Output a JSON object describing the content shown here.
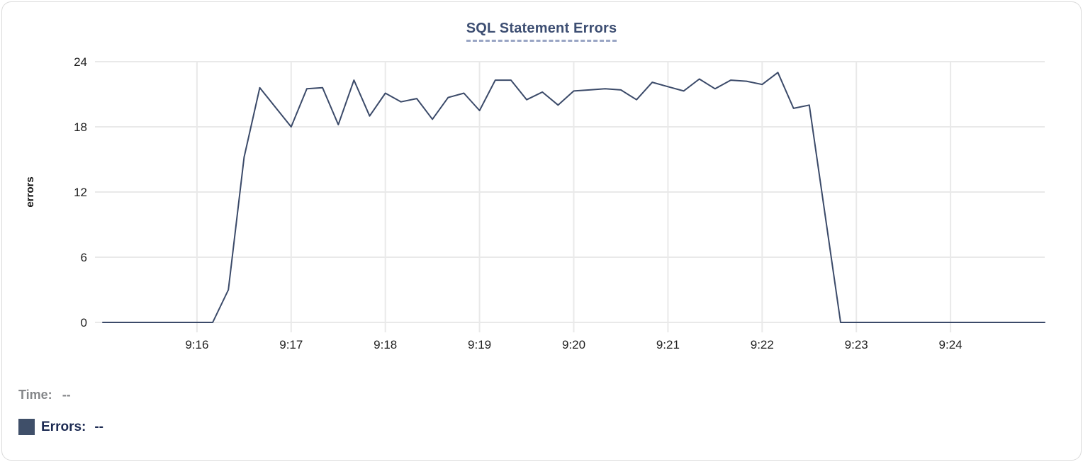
{
  "chart_data": {
    "type": "line",
    "title": "SQL Statement Errors",
    "xlabel": "",
    "ylabel": "errors",
    "ylim": [
      0,
      24
    ],
    "y_ticks": [
      0,
      6,
      12,
      18,
      24
    ],
    "x_ticks": [
      "9:16",
      "9:17",
      "9:18",
      "9:19",
      "9:20",
      "9:21",
      "9:22",
      "9:23",
      "9:24"
    ],
    "xlim": [
      "9:15:00",
      "9:25:00"
    ],
    "x_interval_seconds": 10,
    "grid": true,
    "legend_position": "bottom-left",
    "series": [
      {
        "name": "Errors",
        "color": "#3b4a69",
        "points": [
          [
            "9:15:00",
            0
          ],
          [
            "9:15:10",
            0
          ],
          [
            "9:15:20",
            0
          ],
          [
            "9:15:30",
            0
          ],
          [
            "9:15:40",
            0
          ],
          [
            "9:15:50",
            0
          ],
          [
            "9:16:00",
            0
          ],
          [
            "9:16:10",
            0
          ],
          [
            "9:16:20",
            3
          ],
          [
            "9:16:30",
            15.2
          ],
          [
            "9:16:40",
            21.6
          ],
          [
            "9:16:50",
            19.8
          ],
          [
            "9:17:00",
            18
          ],
          [
            "9:17:10",
            21.5
          ],
          [
            "9:17:20",
            21.6
          ],
          [
            "9:17:30",
            18.2
          ],
          [
            "9:17:40",
            22.3
          ],
          [
            "9:17:50",
            19
          ],
          [
            "9:18:00",
            21.1
          ],
          [
            "9:18:10",
            20.3
          ],
          [
            "9:18:20",
            20.6
          ],
          [
            "9:18:30",
            18.7
          ],
          [
            "9:18:40",
            20.7
          ],
          [
            "9:18:50",
            21.1
          ],
          [
            "9:19:00",
            19.5
          ],
          [
            "9:19:10",
            22.3
          ],
          [
            "9:19:20",
            22.3
          ],
          [
            "9:19:30",
            20.5
          ],
          [
            "9:19:40",
            21.2
          ],
          [
            "9:19:50",
            20
          ],
          [
            "9:20:00",
            21.3
          ],
          [
            "9:20:10",
            21.4
          ],
          [
            "9:20:20",
            21.5
          ],
          [
            "9:20:30",
            21.4
          ],
          [
            "9:20:40",
            20.5
          ],
          [
            "9:20:50",
            22.1
          ],
          [
            "9:21:00",
            21.7
          ],
          [
            "9:21:10",
            21.3
          ],
          [
            "9:21:20",
            22.4
          ],
          [
            "9:21:30",
            21.5
          ],
          [
            "9:21:40",
            22.3
          ],
          [
            "9:21:50",
            22.2
          ],
          [
            "9:22:00",
            21.9
          ],
          [
            "9:22:10",
            23
          ],
          [
            "9:22:20",
            19.7
          ],
          [
            "9:22:30",
            20
          ],
          [
            "9:22:40",
            10
          ],
          [
            "9:22:50",
            0
          ],
          [
            "9:23:00",
            0
          ],
          [
            "9:23:10",
            0
          ],
          [
            "9:23:20",
            0
          ],
          [
            "9:23:30",
            0
          ],
          [
            "9:23:40",
            0
          ],
          [
            "9:23:50",
            0
          ],
          [
            "9:24:00",
            0
          ],
          [
            "9:24:10",
            0
          ],
          [
            "9:24:20",
            0
          ],
          [
            "9:24:30",
            0
          ],
          [
            "9:24:40",
            0
          ],
          [
            "9:24:50",
            0
          ],
          [
            "9:25:00",
            0
          ]
        ]
      }
    ]
  },
  "tooltip_readout": {
    "time_label": "Time:",
    "time_value": "--",
    "errors_label": "Errors:",
    "errors_value": "--",
    "swatch_color": "#3f4f69"
  },
  "colors": {
    "line": "#3b4a69",
    "grid": "#e9e9e9",
    "tick_text": "#1f1f1f",
    "axis_label_text": "#111111",
    "title_text": "#3d4e72",
    "title_underline": "#99a5c4",
    "time_label_text": "#85878a",
    "errors_label_text": "#1c2a52",
    "card_border": "#dbdbdb"
  }
}
